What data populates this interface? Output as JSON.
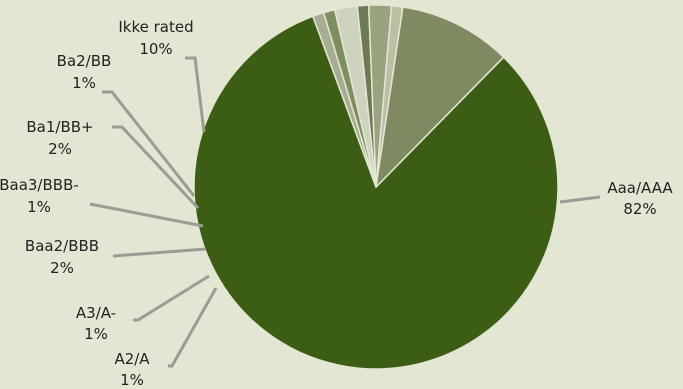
{
  "colors": {
    "background": "#e3e6d3",
    "leader": "#9a9d94"
  },
  "chart_data": {
    "type": "pie",
    "title": "",
    "legend": "none",
    "slices": [
      {
        "label": "Aaa/AAA",
        "value": 82,
        "value_label": "82%",
        "color": "#3c5e14"
      },
      {
        "label": "A2/A",
        "value": 1,
        "value_label": "1%",
        "color": "#a7ad93"
      },
      {
        "label": "A3/A-",
        "value": 1,
        "value_label": "1%",
        "color": "#7d8f5e"
      },
      {
        "label": "Baa2/BBB",
        "value": 2,
        "value_label": "2%",
        "color": "#ced3bf"
      },
      {
        "label": "Baa3/BBB-",
        "value": 1,
        "value_label": "1%",
        "color": "#6e7a55"
      },
      {
        "label": "Ba1/BB+",
        "value": 2,
        "value_label": "2%",
        "color": "#99a37f"
      },
      {
        "label": "Ba2/BB",
        "value": 1,
        "value_label": "1%",
        "color": "#b9c0a6"
      },
      {
        "label": "Ikke rated",
        "value": 10,
        "value_label": "10%",
        "color": "#7f8a62"
      }
    ]
  }
}
